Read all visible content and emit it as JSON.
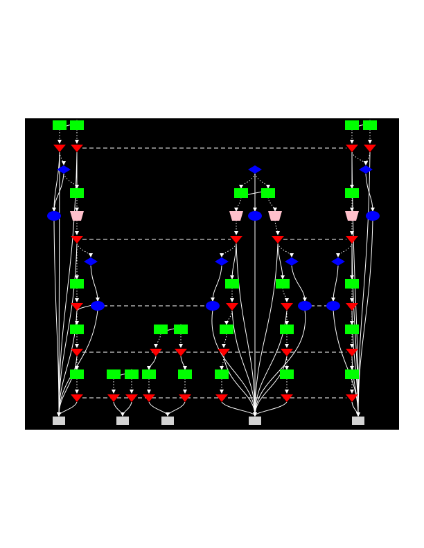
{
  "colors": {
    "background": "#000000",
    "page": "#ffffff",
    "green_node": "#00ff00",
    "red_node": "#ff0000",
    "blue_node": "#0000ff",
    "pink_node": "#ffc0cb",
    "gray_node": "#d3d3d3",
    "edge": "#ffffff"
  },
  "diagram": {
    "type": "directed-graph",
    "node_shapes": {
      "green": "rectangle",
      "red": "inverted-triangle",
      "blue-diamond": "diamond",
      "blue-ellipse": "ellipse",
      "pink": "inverted-trapezoid",
      "gray": "rectangle"
    },
    "text_labels": []
  }
}
